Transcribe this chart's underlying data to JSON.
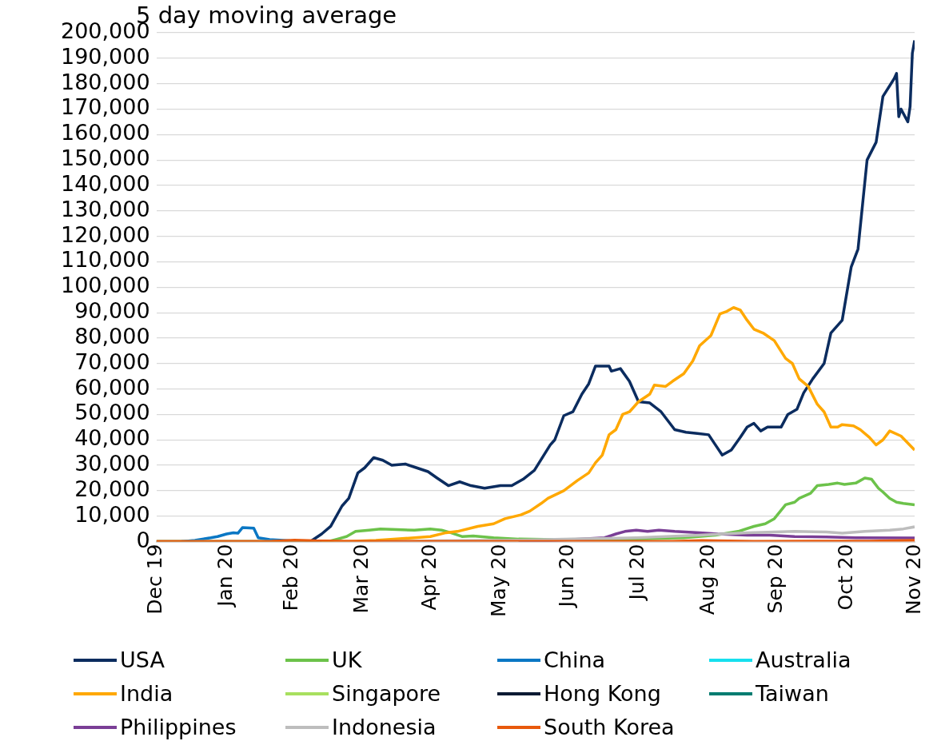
{
  "chart_data": {
    "type": "line",
    "title": "5 day moving average",
    "legend": "bottom",
    "grid": "y",
    "xlim": [
      "2019-12-31",
      "2020-11-30"
    ],
    "xticks": [
      {
        "value": "2019-12-31",
        "label": "Dec 19"
      },
      {
        "value": "2020-01-31",
        "label": "Jan 20"
      },
      {
        "value": "2020-02-29",
        "label": "Feb 20"
      },
      {
        "value": "2020-03-31",
        "label": "Mar 20"
      },
      {
        "value": "2020-04-30",
        "label": "Apr 20"
      },
      {
        "value": "2020-05-31",
        "label": "May 20"
      },
      {
        "value": "2020-06-30",
        "label": "Jun 20"
      },
      {
        "value": "2020-07-31",
        "label": "Jul 20"
      },
      {
        "value": "2020-08-31",
        "label": "Aug 20"
      },
      {
        "value": "2020-09-30",
        "label": "Sep 20"
      },
      {
        "value": "2020-10-31",
        "label": "Oct 20"
      },
      {
        "value": "2020-11-30",
        "label": "Nov 20"
      }
    ],
    "ylim": [
      0,
      200000
    ],
    "yticks": [
      {
        "value": 0,
        "label": "0"
      },
      {
        "value": 10000,
        "label": "10,000"
      },
      {
        "value": 20000,
        "label": "20,000"
      },
      {
        "value": 30000,
        "label": "30,000"
      },
      {
        "value": 40000,
        "label": "40,000"
      },
      {
        "value": 50000,
        "label": "50,000"
      },
      {
        "value": 60000,
        "label": "60,000"
      },
      {
        "value": 70000,
        "label": "70,000"
      },
      {
        "value": 80000,
        "label": "80,000"
      },
      {
        "value": 90000,
        "label": "90,000"
      },
      {
        "value": 100000,
        "label": "100,000"
      },
      {
        "value": 110000,
        "label": "110,000"
      },
      {
        "value": 120000,
        "label": "120,000"
      },
      {
        "value": 130000,
        "label": "130,000"
      },
      {
        "value": 140000,
        "label": "140,000"
      },
      {
        "value": 150000,
        "label": "150,000"
      },
      {
        "value": 160000,
        "label": "160,000"
      },
      {
        "value": 170000,
        "label": "170,000"
      },
      {
        "value": 180000,
        "label": "180,000"
      },
      {
        "value": 190000,
        "label": "190,000"
      },
      {
        "value": 200000,
        "label": "200,000"
      }
    ],
    "series": [
      {
        "name": "USA",
        "color": "#0b2c5f",
        "x": [
          "2019-12-31",
          "2020-03-08",
          "2020-03-13",
          "2020-03-17",
          "2020-03-22",
          "2020-03-25",
          "2020-03-29",
          "2020-04-01",
          "2020-04-05",
          "2020-04-09",
          "2020-04-13",
          "2020-04-19",
          "2020-04-24",
          "2020-04-29",
          "2020-05-03",
          "2020-05-08",
          "2020-05-13",
          "2020-05-18",
          "2020-05-24",
          "2020-05-31",
          "2020-06-05",
          "2020-06-10",
          "2020-06-15",
          "2020-06-22",
          "2020-06-24",
          "2020-06-28",
          "2020-07-02",
          "2020-07-06",
          "2020-07-09",
          "2020-07-12",
          "2020-07-18",
          "2020-07-19",
          "2020-07-23",
          "2020-07-27",
          "2020-07-31",
          "2020-08-05",
          "2020-08-10",
          "2020-08-16",
          "2020-08-21",
          "2020-08-26",
          "2020-08-31",
          "2020-09-03",
          "2020-09-06",
          "2020-09-10",
          "2020-09-14",
          "2020-09-17",
          "2020-09-20",
          "2020-09-23",
          "2020-09-26",
          "2020-10-02",
          "2020-10-05",
          "2020-10-09",
          "2020-10-12",
          "2020-10-16",
          "2020-10-21",
          "2020-10-24",
          "2020-10-29",
          "2020-11-02",
          "2020-11-05",
          "2020-11-09",
          "2020-11-13",
          "2020-11-16",
          "2020-11-21",
          "2020-11-22",
          "2020-11-23",
          "2020-11-24",
          "2020-11-27",
          "2020-11-28",
          "2020-11-29",
          "2020-11-30"
        ],
        "values": [
          0,
          0,
          3000,
          6000,
          14000,
          17000,
          27000,
          29000,
          33000,
          32000,
          30000,
          30500,
          29000,
          27500,
          25000,
          22000,
          23500,
          22000,
          21000,
          22000,
          22000,
          24500,
          28000,
          38000,
          40000,
          49500,
          51000,
          58000,
          62000,
          69000,
          69000,
          67000,
          68000,
          63000,
          55000,
          54500,
          51000,
          44000,
          43000,
          42500,
          42000,
          38000,
          34000,
          36000,
          41000,
          45000,
          46500,
          43500,
          45000,
          45000,
          50000,
          52000,
          58500,
          64000,
          70000,
          82000,
          87000,
          108000,
          115000,
          150000,
          157000,
          175000,
          182000,
          184000,
          167000,
          170000,
          165000,
          171000,
          192000,
          197000
        ]
      },
      {
        "name": "UK",
        "color": "#6cc24a",
        "x": [
          "2019-12-31",
          "2020-03-16",
          "2020-03-20",
          "2020-03-24",
          "2020-03-28",
          "2020-04-03",
          "2020-04-08",
          "2020-04-13",
          "2020-04-23",
          "2020-04-30",
          "2020-05-05",
          "2020-05-09",
          "2020-05-14",
          "2020-05-19",
          "2020-05-28",
          "2020-06-08",
          "2020-06-25",
          "2020-07-16",
          "2020-07-30",
          "2020-08-20",
          "2020-09-03",
          "2020-09-13",
          "2020-09-20",
          "2020-09-25",
          "2020-09-29",
          "2020-10-04",
          "2020-10-08",
          "2020-10-10",
          "2020-10-15",
          "2020-10-18",
          "2020-10-23",
          "2020-10-27",
          "2020-10-30",
          "2020-11-04",
          "2020-11-08",
          "2020-11-11",
          "2020-11-14",
          "2020-11-16",
          "2020-11-19",
          "2020-11-22",
          "2020-11-25",
          "2020-11-30"
        ],
        "values": [
          0,
          0,
          1000,
          2000,
          4000,
          4500,
          5000,
          4800,
          4500,
          5000,
          4500,
          3500,
          2000,
          2200,
          1500,
          1000,
          800,
          800,
          1000,
          1500,
          2500,
          4000,
          6000,
          7000,
          9000,
          14500,
          15500,
          17000,
          19000,
          22000,
          22500,
          23000,
          22500,
          23000,
          25000,
          24500,
          21000,
          19500,
          17000,
          15500,
          15000,
          14500
        ]
      },
      {
        "name": "China",
        "color": "#0a77c4",
        "x": [
          "2020-01-11",
          "2020-01-17",
          "2020-01-24",
          "2020-01-27",
          "2020-01-31",
          "2020-02-03",
          "2020-02-05",
          "2020-02-07",
          "2020-02-12",
          "2020-02-14",
          "2020-02-19",
          "2020-02-28",
          "2020-03-13"
        ],
        "values": [
          0,
          500,
          1500,
          2000,
          3000,
          3500,
          3300,
          5500,
          5300,
          1500,
          800,
          300,
          100
        ]
      },
      {
        "name": "Australia",
        "color": "#17e0ee"
      },
      {
        "name": "India",
        "color": "#ffa800",
        "x": [
          "2019-12-31",
          "2020-03-23",
          "2020-04-06",
          "2020-04-23",
          "2020-04-30",
          "2020-05-07",
          "2020-05-12",
          "2020-05-21",
          "2020-05-28",
          "2020-06-02",
          "2020-06-09",
          "2020-06-13",
          "2020-06-18",
          "2020-06-21",
          "2020-06-28",
          "2020-07-04",
          "2020-07-09",
          "2020-07-12",
          "2020-07-15",
          "2020-07-18",
          "2020-07-21",
          "2020-07-24",
          "2020-07-27",
          "2020-07-31",
          "2020-08-05",
          "2020-08-07",
          "2020-08-12",
          "2020-08-15",
          "2020-08-20",
          "2020-08-24",
          "2020-08-27",
          "2020-09-01",
          "2020-09-05",
          "2020-09-08",
          "2020-09-11",
          "2020-09-14",
          "2020-09-17",
          "2020-09-20",
          "2020-09-24",
          "2020-09-29",
          "2020-10-04",
          "2020-10-07",
          "2020-10-10",
          "2020-10-14",
          "2020-10-18",
          "2020-10-21",
          "2020-10-24",
          "2020-10-27",
          "2020-10-29",
          "2020-11-03",
          "2020-11-06",
          "2020-11-10",
          "2020-11-13",
          "2020-11-16",
          "2020-11-19",
          "2020-11-24",
          "2020-11-30"
        ],
        "values": [
          0,
          0,
          500,
          1500,
          2000,
          3500,
          4000,
          6000,
          7000,
          9000,
          10500,
          12000,
          15000,
          17000,
          20000,
          24000,
          27000,
          31000,
          34000,
          42000,
          44000,
          50000,
          51000,
          55000,
          58000,
          61500,
          61000,
          63000,
          66000,
          71000,
          77000,
          81000,
          89500,
          90500,
          92000,
          91000,
          87000,
          83500,
          82000,
          79000,
          72000,
          70000,
          64000,
          61000,
          54000,
          51000,
          45000,
          45000,
          46000,
          45500,
          44000,
          41000,
          38000,
          40000,
          43500,
          41500,
          36000
        ]
      },
      {
        "name": "Singapore",
        "color": "#a8e05f"
      },
      {
        "name": "Hong Kong",
        "color": "#0b1a33"
      },
      {
        "name": "Taiwan",
        "color": "#007c70"
      },
      {
        "name": "Philippines",
        "color": "#7a3e96",
        "x": [
          "2020-06-08",
          "2020-06-25",
          "2020-07-16",
          "2020-07-21",
          "2020-07-25",
          "2020-07-30",
          "2020-08-04",
          "2020-08-09",
          "2020-08-16",
          "2020-08-27",
          "2020-09-04",
          "2020-09-17",
          "2020-09-27",
          "2020-10-08",
          "2020-10-22",
          "2020-11-04",
          "2020-11-30"
        ],
        "values": [
          0,
          500,
          1500,
          3000,
          4000,
          4500,
          4000,
          4500,
          4000,
          3500,
          3000,
          2500,
          2500,
          2000,
          1800,
          1500,
          1400
        ]
      },
      {
        "name": "Indonesia",
        "color": "#bdbdbd",
        "x": [
          "2019-12-31",
          "2020-04-09",
          "2020-05-03",
          "2020-06-08",
          "2020-07-02",
          "2020-07-30",
          "2020-08-27",
          "2020-09-17",
          "2020-10-08",
          "2020-10-22",
          "2020-10-29",
          "2020-11-08",
          "2020-11-19",
          "2020-11-25",
          "2020-11-30"
        ],
        "values": [
          0,
          0,
          300,
          600,
          1000,
          1500,
          2500,
          3500,
          4000,
          3800,
          3300,
          4000,
          4500,
          5000,
          5800
        ]
      },
      {
        "name": "South Korea",
        "color": "#e8590c",
        "x": [
          "2019-12-31",
          "2020-02-20",
          "2020-03-01",
          "2020-03-10",
          "2020-03-25",
          "2020-08-15",
          "2020-08-28",
          "2020-09-20",
          "2020-11-10",
          "2020-11-30"
        ],
        "values": [
          0,
          100,
          600,
          300,
          100,
          100,
          400,
          100,
          200,
          500
        ]
      }
    ]
  }
}
